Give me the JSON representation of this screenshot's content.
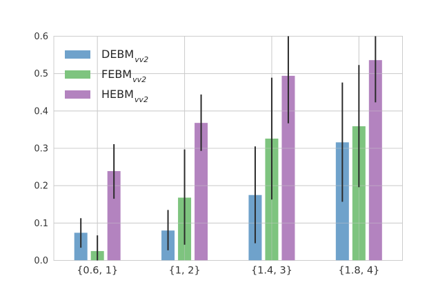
{
  "chart_data": {
    "type": "bar",
    "title": "",
    "xlabel": "",
    "ylabel": "",
    "categories": [
      "{0.6, 1}",
      "{1, 2}",
      "{1.4, 3}",
      "{1.8, 4}"
    ],
    "series": [
      {
        "name": "DEBM",
        "subscript": "vv2",
        "color": "#6FA2CB",
        "values": [
          0.074,
          0.08,
          0.175,
          0.316
        ],
        "err_low": [
          0.034,
          0.027,
          0.046,
          0.157
        ],
        "err_high": [
          0.113,
          0.135,
          0.305,
          0.476
        ]
      },
      {
        "name": "FEBM",
        "subscript": "vv2",
        "color": "#7EC47F",
        "values": [
          0.025,
          0.168,
          0.326,
          0.359
        ],
        "err_low": [
          0.0,
          0.042,
          0.163,
          0.196
        ],
        "err_high": [
          0.067,
          0.297,
          0.489,
          0.523
        ]
      },
      {
        "name": "HEBM",
        "subscript": "vv2",
        "color": "#B383BF",
        "values": [
          0.239,
          0.368,
          0.494,
          0.536
        ],
        "err_low": [
          0.165,
          0.293,
          0.367,
          0.423
        ],
        "err_high": [
          0.311,
          0.444,
          0.6,
          0.6
        ]
      }
    ],
    "ylim": [
      0.0,
      0.6
    ],
    "yticks": [
      "0.0",
      "0.1",
      "0.2",
      "0.3",
      "0.4",
      "0.5",
      "0.6"
    ],
    "grid": true,
    "legend_position": "upper left",
    "colors": {
      "error_bar": "#2b2b2b",
      "grid": "#cccccc",
      "spine": "#cccccc",
      "tick_label": "#333333",
      "background": "#ffffff"
    }
  }
}
